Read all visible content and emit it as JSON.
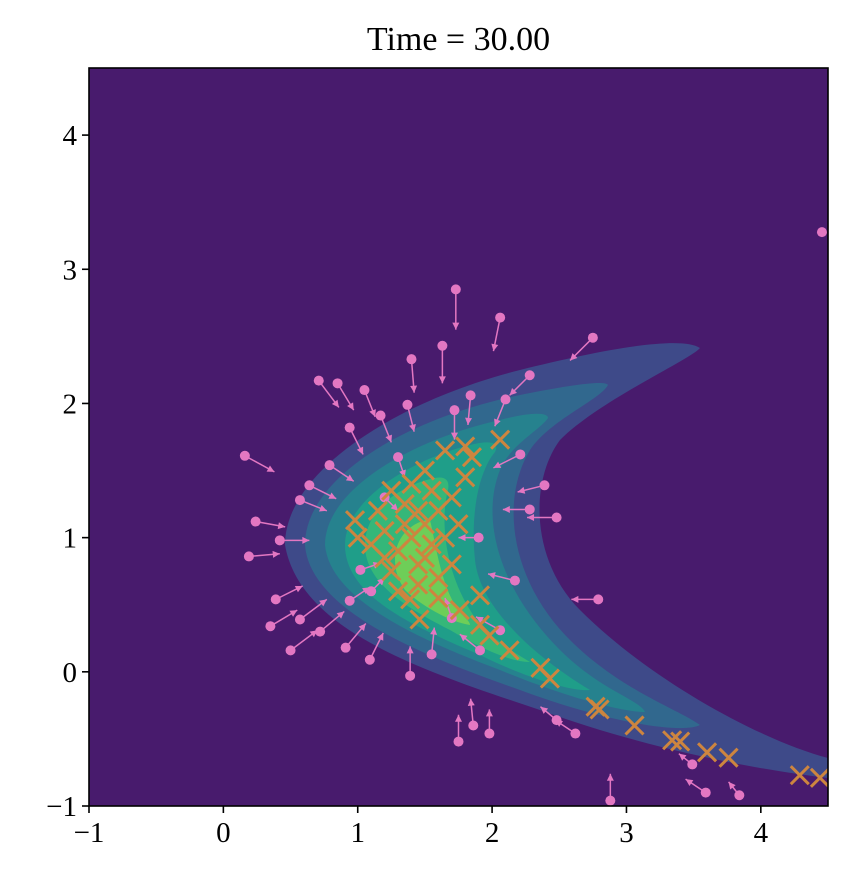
{
  "chart_data": {
    "type": "scatter",
    "title": "Time = 30.00",
    "xlim": [
      -1,
      4.5
    ],
    "ylim": [
      -1,
      4.5
    ],
    "xticks": [
      {
        "value": -1,
        "label": "−1"
      },
      0,
      1,
      2,
      3,
      4
    ],
    "yticks": [
      {
        "value": -1,
        "label": "−1"
      },
      0,
      1,
      2,
      3,
      4
    ],
    "series": [
      {
        "color": "#e377c2",
        "marker": "o",
        "x": [
          4.455,
          1.73,
          2.06,
          2.75,
          1.4,
          1.63,
          0.71,
          0.85,
          1.05,
          0.16,
          0.19,
          0.5,
          2.79,
          1.75,
          1.98,
          1.86,
          2.62,
          3.59,
          3.84,
          1.39,
          1.55,
          2.48,
          3.49,
          0.39,
          0.35,
          0.57,
          0.72,
          0.91,
          1.09,
          0.24,
          0.42,
          0.57,
          0.64,
          0.79,
          0.94,
          1.17,
          1.37,
          1.72,
          1.84,
          2.1,
          2.28,
          2.21,
          2.39,
          2.48,
          2.28,
          2.17,
          2.06,
          1.91,
          1.02,
          0.94,
          2.88,
          1.2,
          1.1,
          1.9,
          1.3,
          1.7
        ],
        "y": [
          3.277,
          2.85,
          2.64,
          2.49,
          2.33,
          2.43,
          2.17,
          2.15,
          2.1,
          1.61,
          0.86,
          0.16,
          0.54,
          -0.52,
          -0.46,
          -0.4,
          -0.46,
          -0.9,
          -0.92,
          -0.03,
          0.13,
          -0.36,
          -0.69,
          0.54,
          0.34,
          0.39,
          0.3,
          0.18,
          0.09,
          1.12,
          0.98,
          1.28,
          1.39,
          1.54,
          1.82,
          1.91,
          1.99,
          1.95,
          2.06,
          2.03,
          2.21,
          1.62,
          1.39,
          1.15,
          1.21,
          0.68,
          0.31,
          0.16,
          0.76,
          0.53,
          -0.96,
          1.3,
          0.6,
          1.0,
          1.6,
          0.4
        ],
        "u": [
          0,
          0,
          -0.05,
          -0.17,
          0.02,
          0,
          0.15,
          0.12,
          0.08,
          0.22,
          0.23,
          0.2,
          -0.2,
          0,
          0,
          -0.02,
          -0.15,
          -0.15,
          -0.08,
          0,
          0.02,
          -0.12,
          -0.1,
          0.2,
          0.2,
          0.2,
          0.18,
          0.15,
          0.1,
          0.22,
          0.22,
          0.2,
          0.2,
          0.18,
          0.1,
          0.08,
          0.05,
          0,
          -0.02,
          -0.08,
          -0.15,
          -0.2,
          -0.2,
          -0.22,
          -0.2,
          -0.2,
          -0.18,
          -0.15,
          0.15,
          0.15,
          0,
          0.1,
          0.1,
          -0.15,
          0.05,
          -0.05
        ],
        "v": [
          0,
          -0.3,
          -0.25,
          -0.17,
          -0.25,
          -0.28,
          -0.2,
          -0.2,
          -0.2,
          -0.12,
          0.02,
          0.15,
          0,
          0.2,
          0.18,
          0.2,
          0.1,
          0.1,
          0.1,
          0.22,
          0.2,
          0.1,
          0.08,
          0.1,
          0.12,
          0.15,
          0.15,
          0.18,
          0.2,
          -0.04,
          0,
          -0.08,
          -0.1,
          -0.12,
          -0.2,
          -0.2,
          -0.2,
          -0.22,
          -0.22,
          -0.2,
          -0.15,
          -0.1,
          -0.05,
          0,
          0,
          0.05,
          0.1,
          0.12,
          0.05,
          0.1,
          0.2,
          -0.1,
          0.1,
          0,
          -0.15,
          0.15
        ]
      },
      {
        "color": "#cd853f",
        "marker": "x",
        "x": [
          4.29,
          4.44,
          3.76,
          3.6,
          3.4,
          3.34,
          3.06,
          2.8,
          2.77,
          2.43,
          2.36,
          2.13,
          1.98,
          1.91,
          1.76,
          1.91,
          2.06,
          1.8,
          1.65,
          0.98,
          1.46,
          1.39,
          1.4,
          1.5,
          1.3,
          1.6,
          1.2,
          1.45,
          1.55,
          1.35,
          1.7,
          1.25,
          1.6,
          1.4,
          1.5,
          1.65,
          1.15,
          1.3,
          1.75,
          1.45,
          1.1,
          1.55,
          1.8,
          1.35,
          1.5,
          1.6,
          1.7,
          1.2,
          1.0,
          1.85,
          1.25,
          1.45
        ],
        "y": [
          -0.77,
          -0.79,
          -0.64,
          -0.6,
          -0.52,
          -0.51,
          -0.4,
          -0.28,
          -0.26,
          -0.05,
          0.03,
          0.16,
          0.27,
          0.35,
          0.46,
          0.57,
          1.73,
          1.68,
          1.65,
          1.13,
          0.39,
          0.54,
          1.0,
          1.1,
          0.9,
          1.2,
          1.05,
          0.8,
          0.95,
          1.25,
          1.3,
          0.75,
          0.7,
          1.4,
          1.5,
          1.0,
          1.2,
          0.6,
          1.1,
          0.65,
          0.95,
          1.35,
          1.45,
          1.1,
          0.85,
          0.55,
          0.8,
          0.85,
          1.0,
          1.6,
          1.35,
          1.2
        ]
      }
    ]
  }
}
